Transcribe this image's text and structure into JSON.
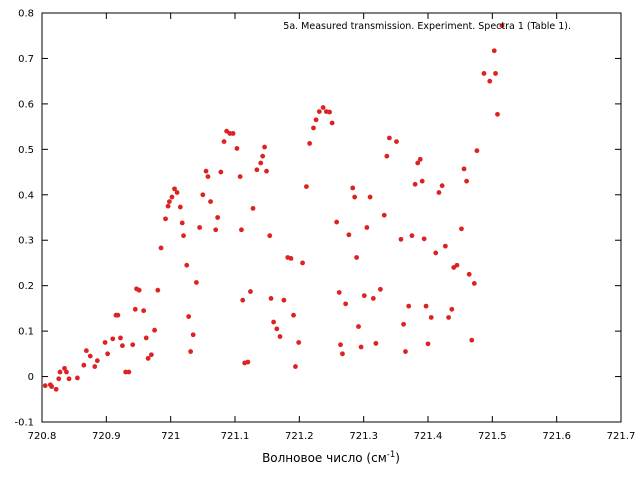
{
  "chart_data": {
    "type": "scatter",
    "title": "5a. Measured transmission. Experiment. Spectra 1 (Table 1).",
    "xlabel": "Волновое число (см",
    "xlabel_sup": "-1",
    "xlabel_tail": ")",
    "xlim": [
      720.8,
      721.7
    ],
    "ylim": [
      -0.1,
      0.8
    ],
    "xticks": [
      720.8,
      720.9,
      721.0,
      721.1,
      721.2,
      721.3,
      721.4,
      721.5,
      721.6,
      721.7
    ],
    "xtick_labels": [
      "720.8",
      "720.9",
      "721",
      "721.1",
      "721.2",
      "721.3",
      "721.4",
      "721.5",
      "721.6",
      "721.7"
    ],
    "yticks": [
      -0.1,
      0,
      0.1,
      0.2,
      0.3,
      0.4,
      0.5,
      0.6,
      0.7,
      0.8
    ],
    "ytick_labels": [
      "-0.1",
      "0",
      "0.1",
      "0.2",
      "0.3",
      "0.4",
      "0.5",
      "0.6",
      "0.7",
      "0.8"
    ],
    "grid": false,
    "marker_color": "#dd2222",
    "points": [
      [
        720.805,
        -0.02
      ],
      [
        720.813,
        -0.018
      ],
      [
        720.815,
        -0.022
      ],
      [
        720.822,
        -0.028
      ],
      [
        720.826,
        -0.005
      ],
      [
        720.828,
        0.01
      ],
      [
        720.835,
        0.018
      ],
      [
        720.838,
        0.01
      ],
      [
        720.842,
        -0.005
      ],
      [
        720.855,
        -0.003
      ],
      [
        720.865,
        0.025
      ],
      [
        720.869,
        0.057
      ],
      [
        720.875,
        0.045
      ],
      [
        720.882,
        0.022
      ],
      [
        720.886,
        0.035
      ],
      [
        720.898,
        0.075
      ],
      [
        720.902,
        0.05
      ],
      [
        720.91,
        0.083
      ],
      [
        720.915,
        0.135
      ],
      [
        720.918,
        0.135
      ],
      [
        720.922,
        0.085
      ],
      [
        720.925,
        0.068
      ],
      [
        720.93,
        0.01
      ],
      [
        720.935,
        0.01
      ],
      [
        720.941,
        0.07
      ],
      [
        720.945,
        0.148
      ],
      [
        720.947,
        0.193
      ],
      [
        720.951,
        0.19
      ],
      [
        720.958,
        0.145
      ],
      [
        720.962,
        0.085
      ],
      [
        720.965,
        0.04
      ],
      [
        720.97,
        0.048
      ],
      [
        720.975,
        0.102
      ],
      [
        720.98,
        0.19
      ],
      [
        720.985,
        0.283
      ],
      [
        720.992,
        0.347
      ],
      [
        720.996,
        0.375
      ],
      [
        720.998,
        0.385
      ],
      [
        721.002,
        0.395
      ],
      [
        721.006,
        0.413
      ],
      [
        721.01,
        0.405
      ],
      [
        721.015,
        0.373
      ],
      [
        721.018,
        0.338
      ],
      [
        721.02,
        0.31
      ],
      [
        721.025,
        0.245
      ],
      [
        721.028,
        0.132
      ],
      [
        721.031,
        0.055
      ],
      [
        721.035,
        0.092
      ],
      [
        721.04,
        0.207
      ],
      [
        721.045,
        0.328
      ],
      [
        721.05,
        0.4
      ],
      [
        721.055,
        0.452
      ],
      [
        721.058,
        0.44
      ],
      [
        721.062,
        0.385
      ],
      [
        721.07,
        0.323
      ],
      [
        721.073,
        0.35
      ],
      [
        721.078,
        0.45
      ],
      [
        721.083,
        0.517
      ],
      [
        721.087,
        0.54
      ],
      [
        721.092,
        0.535
      ],
      [
        721.097,
        0.535
      ],
      [
        721.103,
        0.502
      ],
      [
        721.108,
        0.44
      ],
      [
        721.11,
        0.323
      ],
      [
        721.112,
        0.168
      ],
      [
        721.115,
        0.03
      ],
      [
        721.12,
        0.032
      ],
      [
        721.124,
        0.187
      ],
      [
        721.128,
        0.37
      ],
      [
        721.134,
        0.455
      ],
      [
        721.14,
        0.47
      ],
      [
        721.143,
        0.485
      ],
      [
        721.146,
        0.505
      ],
      [
        721.149,
        0.452
      ],
      [
        721.154,
        0.31
      ],
      [
        721.156,
        0.172
      ],
      [
        721.16,
        0.12
      ],
      [
        721.165,
        0.105
      ],
      [
        721.17,
        0.088
      ],
      [
        721.176,
        0.168
      ],
      [
        721.182,
        0.262
      ],
      [
        721.187,
        0.26
      ],
      [
        721.191,
        0.135
      ],
      [
        721.194,
        0.022
      ],
      [
        721.199,
        0.075
      ],
      [
        721.205,
        0.25
      ],
      [
        721.211,
        0.418
      ],
      [
        721.216,
        0.513
      ],
      [
        721.222,
        0.547
      ],
      [
        721.226,
        0.565
      ],
      [
        721.231,
        0.583
      ],
      [
        721.237,
        0.592
      ],
      [
        721.242,
        0.583
      ],
      [
        721.247,
        0.582
      ],
      [
        721.251,
        0.558
      ],
      [
        721.258,
        0.34
      ],
      [
        721.262,
        0.185
      ],
      [
        721.264,
        0.07
      ],
      [
        721.267,
        0.05
      ],
      [
        721.272,
        0.16
      ],
      [
        721.277,
        0.312
      ],
      [
        721.283,
        0.415
      ],
      [
        721.286,
        0.395
      ],
      [
        721.289,
        0.262
      ],
      [
        721.292,
        0.11
      ],
      [
        721.296,
        0.065
      ],
      [
        721.301,
        0.178
      ],
      [
        721.305,
        0.328
      ],
      [
        721.31,
        0.395
      ],
      [
        721.315,
        0.172
      ],
      [
        721.319,
        0.073
      ],
      [
        721.326,
        0.192
      ],
      [
        721.332,
        0.355
      ],
      [
        721.336,
        0.485
      ],
      [
        721.34,
        0.525
      ],
      [
        721.351,
        0.517
      ],
      [
        721.358,
        0.302
      ],
      [
        721.362,
        0.115
      ],
      [
        721.365,
        0.055
      ],
      [
        721.37,
        0.155
      ],
      [
        721.375,
        0.31
      ],
      [
        721.38,
        0.423
      ],
      [
        721.384,
        0.47
      ],
      [
        721.388,
        0.478
      ],
      [
        721.391,
        0.43
      ],
      [
        721.394,
        0.303
      ],
      [
        721.397,
        0.155
      ],
      [
        721.4,
        0.072
      ],
      [
        721.405,
        0.13
      ],
      [
        721.412,
        0.272
      ],
      [
        721.417,
        0.405
      ],
      [
        721.422,
        0.42
      ],
      [
        721.427,
        0.287
      ],
      [
        721.432,
        0.13
      ],
      [
        721.437,
        0.148
      ],
      [
        721.44,
        0.24
      ],
      [
        721.445,
        0.245
      ],
      [
        721.452,
        0.325
      ],
      [
        721.456,
        0.457
      ],
      [
        721.46,
        0.43
      ],
      [
        721.464,
        0.225
      ],
      [
        721.468,
        0.08
      ],
      [
        721.472,
        0.205
      ],
      [
        721.476,
        0.497
      ],
      [
        721.487,
        0.667
      ],
      [
        721.496,
        0.65
      ],
      [
        721.503,
        0.717
      ],
      [
        721.505,
        0.667
      ],
      [
        721.508,
        0.577
      ],
      [
        721.515,
        0.772
      ]
    ]
  }
}
